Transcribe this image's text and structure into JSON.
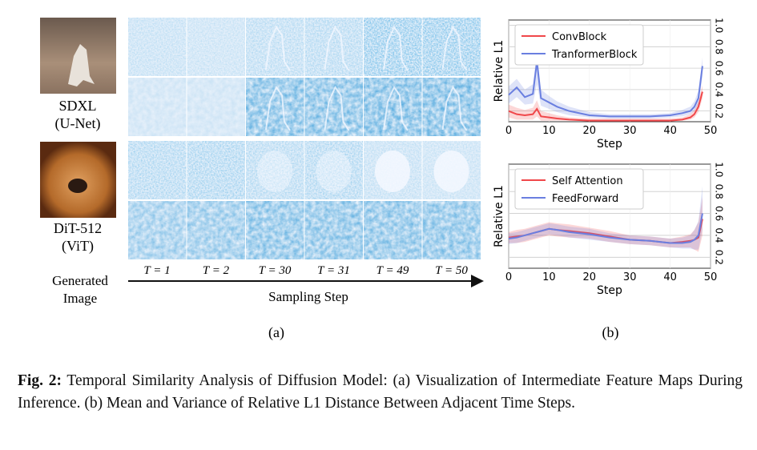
{
  "figure_a": {
    "models": [
      {
        "name": "SDXL",
        "arch": "(U-Net)"
      },
      {
        "name": "DiT-512",
        "arch": "(ViT)"
      }
    ],
    "image_label": "Generated Image",
    "steps": [
      "T = 1",
      "T = 2",
      "T = 30",
      "T = 31",
      "T = 49",
      "T = 50"
    ],
    "xlabel": "Sampling Step",
    "panel": "(a)"
  },
  "chart_data": [
    {
      "type": "line",
      "xlabel": "Step",
      "ylabel": "Relative L1",
      "x": [
        0,
        2,
        4,
        6,
        7,
        8,
        10,
        12,
        15,
        20,
        25,
        30,
        35,
        40,
        43,
        45,
        46,
        47,
        48
      ],
      "series": [
        {
          "name": "ConvBlock",
          "color": "#f0474a",
          "values": [
            0.2,
            0.17,
            0.16,
            0.17,
            0.22,
            0.15,
            0.14,
            0.13,
            0.12,
            0.11,
            0.11,
            0.11,
            0.11,
            0.11,
            0.12,
            0.14,
            0.17,
            0.24,
            0.38
          ],
          "lower": [
            0.14,
            0.12,
            0.12,
            0.12,
            0.15,
            0.11,
            0.11,
            0.11,
            0.11,
            0.11,
            0.11,
            0.11,
            0.11,
            0.11,
            0.11,
            0.12,
            0.14,
            0.19,
            0.32
          ],
          "upper": [
            0.26,
            0.23,
            0.21,
            0.23,
            0.3,
            0.2,
            0.18,
            0.16,
            0.14,
            0.13,
            0.13,
            0.13,
            0.13,
            0.13,
            0.14,
            0.17,
            0.21,
            0.29,
            0.44
          ]
        },
        {
          "name": "TranformerBlock",
          "color": "#6a7fe0",
          "values": [
            0.35,
            0.42,
            0.33,
            0.36,
            0.66,
            0.32,
            0.28,
            0.24,
            0.2,
            0.16,
            0.15,
            0.15,
            0.15,
            0.16,
            0.18,
            0.2,
            0.24,
            0.32,
            0.62
          ],
          "lower": [
            0.27,
            0.33,
            0.26,
            0.27,
            0.45,
            0.25,
            0.22,
            0.19,
            0.16,
            0.14,
            0.13,
            0.13,
            0.13,
            0.14,
            0.15,
            0.17,
            0.2,
            0.26,
            0.52
          ],
          "upper": [
            0.43,
            0.5,
            0.4,
            0.45,
            0.76,
            0.4,
            0.34,
            0.29,
            0.24,
            0.19,
            0.17,
            0.17,
            0.17,
            0.18,
            0.21,
            0.24,
            0.29,
            0.39,
            0.7
          ]
        }
      ],
      "xlim": [
        0,
        50
      ],
      "xticks": [
        0,
        10,
        20,
        30,
        40,
        50
      ],
      "ylim": [
        0.1,
        1.05
      ],
      "yticks": [
        0.2,
        0.4,
        0.6,
        0.8,
        {
          "value": 1,
          "label": "1.0"
        }
      ],
      "grid": true,
      "legend": "upper-left"
    },
    {
      "type": "line",
      "xlabel": "Step",
      "ylabel": "Relative L1",
      "x": [
        0,
        2,
        4,
        6,
        8,
        10,
        12,
        15,
        20,
        25,
        30,
        35,
        40,
        43,
        45,
        46,
        47,
        48
      ],
      "series": [
        {
          "name": "Self Attention",
          "color": "#f0474a",
          "values": [
            0.38,
            0.39,
            0.4,
            0.42,
            0.44,
            0.46,
            0.45,
            0.44,
            0.42,
            0.39,
            0.36,
            0.35,
            0.33,
            0.34,
            0.35,
            0.36,
            0.38,
            0.55
          ],
          "lower": [
            0.33,
            0.33,
            0.34,
            0.36,
            0.38,
            0.4,
            0.39,
            0.38,
            0.37,
            0.34,
            0.32,
            0.31,
            0.29,
            0.29,
            0.29,
            0.27,
            0.25,
            0.4
          ],
          "upper": [
            0.43,
            0.45,
            0.46,
            0.48,
            0.5,
            0.52,
            0.51,
            0.5,
            0.47,
            0.44,
            0.4,
            0.39,
            0.37,
            0.39,
            0.41,
            0.45,
            0.52,
            0.75
          ]
        },
        {
          "name": "FeedForward",
          "color": "#6a7fe0",
          "values": [
            0.37,
            0.38,
            0.4,
            0.42,
            0.44,
            0.46,
            0.45,
            0.43,
            0.41,
            0.38,
            0.36,
            0.35,
            0.33,
            0.33,
            0.34,
            0.36,
            0.4,
            0.6
          ],
          "lower": [
            0.32,
            0.33,
            0.35,
            0.37,
            0.39,
            0.41,
            0.4,
            0.38,
            0.36,
            0.34,
            0.32,
            0.31,
            0.29,
            0.28,
            0.28,
            0.27,
            0.27,
            0.45
          ],
          "upper": [
            0.42,
            0.43,
            0.45,
            0.47,
            0.49,
            0.51,
            0.5,
            0.48,
            0.46,
            0.42,
            0.4,
            0.39,
            0.37,
            0.38,
            0.4,
            0.45,
            0.53,
            0.85
          ]
        }
      ],
      "xlim": [
        0,
        50
      ],
      "xticks": [
        0,
        10,
        20,
        30,
        40,
        50
      ],
      "ylim": [
        0.1,
        1.05
      ],
      "yticks": [
        0.2,
        0.4,
        0.6,
        0.8,
        {
          "value": 1,
          "label": "1.0"
        }
      ],
      "grid": true,
      "legend": "upper-left"
    }
  ],
  "panel_b": "(b)",
  "caption": {
    "label": "Fig. 2:",
    "text": "Temporal Similarity Analysis of Diffusion Model: (a) Visualization of Intermediate Feature Maps During Inference. (b) Mean and Variance of Relative L1 Distance Between Adjacent Time Steps."
  }
}
